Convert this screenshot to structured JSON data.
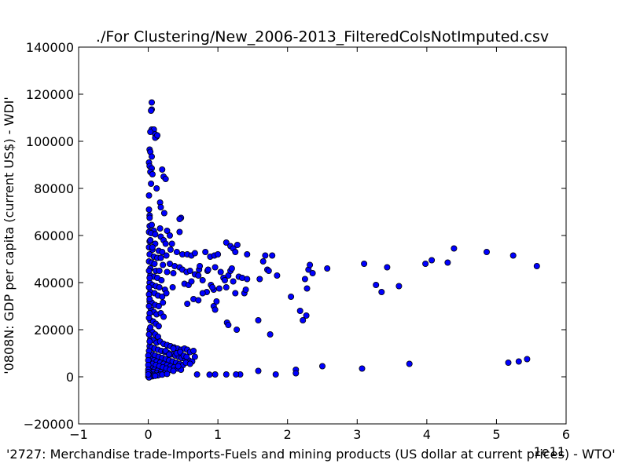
{
  "chart_data": {
    "type": "scatter",
    "title": "./For Clustering/New_2006-2013_FilteredColsNotImputed.csv",
    "xlabel": "'2727: Merchandise trade-Imports-Fuels and mining products (US dollar at current prices) - WTO'",
    "ylabel": "'0808N: GDP per capita  (current US$) - WDI'",
    "x_offset_text": "1e11",
    "xlim": [
      -1,
      6
    ],
    "ylim": [
      -20000,
      140000
    ],
    "x_ticks": [
      -1,
      0,
      1,
      2,
      3,
      4,
      5,
      6
    ],
    "x_tick_labels": [
      "−1",
      "0",
      "1",
      "2",
      "3",
      "4",
      "5",
      "6"
    ],
    "y_ticks": [
      -20000,
      0,
      20000,
      40000,
      60000,
      80000,
      100000,
      120000,
      140000
    ],
    "y_tick_labels": [
      "−20000",
      "0",
      "20000",
      "40000",
      "60000",
      "80000",
      "100000",
      "120000",
      "140000"
    ],
    "grid": false,
    "legend": "none",
    "marker_color": "#0000ff",
    "points": [
      [
        0.05,
        116500
      ],
      [
        0.05,
        113500
      ],
      [
        0.04,
        113000
      ],
      [
        0.05,
        105000
      ],
      [
        0.08,
        105000
      ],
      [
        0.03,
        104000
      ],
      [
        0.1,
        103000
      ],
      [
        0.12,
        102000
      ],
      [
        0.1,
        101500
      ],
      [
        0.13,
        102500
      ],
      [
        0.02,
        96500
      ],
      [
        0.03,
        95500
      ],
      [
        0.05,
        93500
      ],
      [
        0.01,
        91000
      ],
      [
        0.02,
        89500
      ],
      [
        0.05,
        88500
      ],
      [
        0.2,
        88000
      ],
      [
        0.03,
        87000
      ],
      [
        0.06,
        86000
      ],
      [
        0.22,
        85000
      ],
      [
        0.25,
        84000
      ],
      [
        0.04,
        82000
      ],
      [
        0.12,
        80000
      ],
      [
        0.01,
        77000
      ],
      [
        0.17,
        74000
      ],
      [
        0.18,
        72000
      ],
      [
        0.01,
        71000
      ],
      [
        0.23,
        69500
      ],
      [
        0.02,
        68500
      ],
      [
        0.02,
        67500
      ],
      [
        0.47,
        67500
      ],
      [
        0.45,
        67000
      ],
      [
        0.02,
        64000
      ],
      [
        0.05,
        64500
      ],
      [
        0.08,
        62000
      ],
      [
        0.17,
        63000
      ],
      [
        0.27,
        62000
      ],
      [
        0.45,
        61500
      ],
      [
        0.01,
        61500
      ],
      [
        0.04,
        61000
      ],
      [
        0.1,
        60500
      ],
      [
        0.18,
        59500
      ],
      [
        0.31,
        60000
      ],
      [
        0.22,
        58000
      ],
      [
        0.02,
        57500
      ],
      [
        0.1,
        56500
      ],
      [
        0.25,
        56500
      ],
      [
        0.34,
        56500
      ],
      [
        0.01,
        55000
      ],
      [
        0.06,
        54000
      ],
      [
        0.15,
        53500
      ],
      [
        0.2,
        53000
      ],
      [
        0.32,
        54000
      ],
      [
        0.41,
        53000
      ],
      [
        0.49,
        52000
      ],
      [
        0.56,
        52000
      ],
      [
        0.62,
        51500
      ],
      [
        0.67,
        52500
      ],
      [
        0.02,
        52000
      ],
      [
        0.08,
        51000
      ],
      [
        0.13,
        50500
      ],
      [
        0.18,
        50500
      ],
      [
        0.26,
        51500
      ],
      [
        0.01,
        49000
      ],
      [
        0.05,
        48500
      ],
      [
        0.09,
        48000
      ],
      [
        0.21,
        47500
      ],
      [
        0.31,
        48000
      ],
      [
        0.38,
        47000
      ],
      [
        0.45,
        46500
      ],
      [
        0.49,
        45500
      ],
      [
        0.03,
        46000
      ],
      [
        0.11,
        45000
      ],
      [
        0.16,
        45000
      ],
      [
        0.27,
        44500
      ],
      [
        0.36,
        44000
      ],
      [
        0.55,
        44500
      ],
      [
        0.6,
        45000
      ],
      [
        0.67,
        43500
      ],
      [
        0.03,
        43000
      ],
      [
        0.08,
        42500
      ],
      [
        0.13,
        42000
      ],
      [
        0.19,
        41000
      ],
      [
        0.02,
        40000
      ],
      [
        0.06,
        39000
      ],
      [
        0.11,
        38500
      ],
      [
        0.16,
        38000
      ],
      [
        0.24,
        37000
      ],
      [
        0.35,
        38000
      ],
      [
        0.52,
        39500
      ],
      [
        0.58,
        39000
      ],
      [
        0.62,
        40500
      ],
      [
        0.03,
        36000
      ],
      [
        0.09,
        35500
      ],
      [
        0.14,
        34500
      ],
      [
        0.2,
        34000
      ],
      [
        0.26,
        35500
      ],
      [
        0.02,
        32000
      ],
      [
        0.05,
        31500
      ],
      [
        0.1,
        30500
      ],
      [
        0.15,
        30000
      ],
      [
        0.21,
        31500
      ],
      [
        0.56,
        31000
      ],
      [
        0.65,
        33000
      ],
      [
        0.72,
        32500
      ],
      [
        0.04,
        28500
      ],
      [
        0.08,
        27500
      ],
      [
        0.12,
        26500
      ],
      [
        0.18,
        27000
      ],
      [
        0.22,
        25500
      ],
      [
        0.03,
        24000
      ],
      [
        0.07,
        23500
      ],
      [
        0.11,
        22500
      ],
      [
        0.15,
        21500
      ],
      [
        0.02,
        20000
      ],
      [
        0.06,
        19000
      ],
      [
        0.1,
        18000
      ],
      [
        0.14,
        17000
      ],
      [
        0.03,
        16000
      ],
      [
        0.07,
        15500
      ],
      [
        0.12,
        14500
      ],
      [
        0.17,
        15000
      ],
      [
        0.22,
        14000
      ],
      [
        0.27,
        13500
      ],
      [
        0.32,
        13000
      ],
      [
        0.37,
        12500
      ],
      [
        0.42,
        12000
      ],
      [
        0.47,
        11500
      ],
      [
        0.52,
        12000
      ],
      [
        0.56,
        11500
      ],
      [
        0.6,
        10500
      ],
      [
        0.65,
        11000
      ],
      [
        0.02,
        13000
      ],
      [
        0.05,
        12500
      ],
      [
        0.09,
        12000
      ],
      [
        0.14,
        11500
      ],
      [
        0.19,
        11000
      ],
      [
        0.24,
        10500
      ],
      [
        0.29,
        10000
      ],
      [
        0.34,
        9500
      ],
      [
        0.39,
        9000
      ],
      [
        0.44,
        8500
      ],
      [
        0.48,
        8000
      ],
      [
        0.53,
        7500
      ],
      [
        0.58,
        7000
      ],
      [
        0.63,
        6500
      ],
      [
        0.67,
        8500
      ],
      [
        0.02,
        10000
      ],
      [
        0.06,
        9500
      ],
      [
        0.1,
        9000
      ],
      [
        0.15,
        8500
      ],
      [
        0.2,
        8000
      ],
      [
        0.25,
        7500
      ],
      [
        0.3,
        7000
      ],
      [
        0.35,
        6500
      ],
      [
        0.4,
        6000
      ],
      [
        0.45,
        5500
      ],
      [
        0.5,
        5000
      ],
      [
        0.54,
        6000
      ],
      [
        0.6,
        5500
      ],
      [
        0.01,
        8000
      ],
      [
        0.04,
        7500
      ],
      [
        0.08,
        7000
      ],
      [
        0.12,
        6500
      ],
      [
        0.17,
        6000
      ],
      [
        0.22,
        5500
      ],
      [
        0.27,
        5000
      ],
      [
        0.32,
        4500
      ],
      [
        0.37,
        4000
      ],
      [
        0.42,
        3500
      ],
      [
        0.47,
        3000
      ],
      [
        0.02,
        6000
      ],
      [
        0.06,
        5500
      ],
      [
        0.11,
        5000
      ],
      [
        0.16,
        4500
      ],
      [
        0.21,
        4000
      ],
      [
        0.26,
        3500
      ],
      [
        0.31,
        3000
      ],
      [
        0.36,
        2500
      ],
      [
        0.01,
        4000
      ],
      [
        0.05,
        3500
      ],
      [
        0.09,
        3000
      ],
      [
        0.13,
        2500
      ],
      [
        0.18,
        2000
      ],
      [
        0.23,
        1500
      ],
      [
        0.02,
        2500
      ],
      [
        0.07,
        2000
      ],
      [
        0.12,
        1500
      ],
      [
        0.17,
        1000
      ],
      [
        0.01,
        1500
      ],
      [
        0.04,
        1000
      ],
      [
        0.08,
        800
      ],
      [
        0.14,
        600
      ],
      [
        0.2,
        900
      ],
      [
        0.27,
        1200
      ],
      [
        0.01,
        500
      ],
      [
        0.03,
        300
      ],
      [
        0.06,
        200
      ],
      [
        0.1,
        400
      ],
      [
        0.0,
        100
      ],
      [
        0.02,
        0
      ],
      [
        0.01,
        -300
      ],
      [
        0.25,
        11000
      ],
      [
        0.3,
        9500
      ],
      [
        0.36,
        12000
      ],
      [
        0.41,
        10000
      ],
      [
        0.46,
        10500
      ],
      [
        0.51,
        9000
      ],
      [
        0.55,
        8500
      ],
      [
        0.43,
        4500
      ],
      [
        0.03,
        58000
      ],
      [
        0.06,
        55000
      ],
      [
        0.01,
        45000
      ],
      [
        0.02,
        42000
      ],
      [
        0.01,
        38000
      ],
      [
        0.01,
        35000
      ],
      [
        0.02,
        33000
      ],
      [
        0.01,
        30000
      ],
      [
        0.02,
        27000
      ],
      [
        0.01,
        25000
      ],
      [
        0.03,
        21000
      ],
      [
        0.01,
        18000
      ],
      [
        0.02,
        15000
      ],
      [
        0.01,
        11000
      ],
      [
        0.0,
        9000
      ],
      [
        0.0,
        7000
      ],
      [
        0.0,
        5000
      ],
      [
        0.0,
        3000
      ],
      [
        0.0,
        2000
      ],
      [
        0.0,
        1000
      ],
      [
        0.72,
        43000
      ],
      [
        0.73,
        45500
      ],
      [
        0.74,
        47000
      ],
      [
        0.85,
        45000
      ],
      [
        0.9,
        39000
      ],
      [
        0.94,
        37000
      ],
      [
        1.02,
        37500
      ],
      [
        1.08,
        42000
      ],
      [
        1.1,
        41000
      ],
      [
        1.12,
        38000
      ],
      [
        1.15,
        43000
      ],
      [
        1.18,
        45000
      ],
      [
        1.2,
        46000
      ],
      [
        1.22,
        40500
      ],
      [
        1.25,
        35500
      ],
      [
        1.3,
        42500
      ],
      [
        1.35,
        42000
      ],
      [
        1.38,
        35500
      ],
      [
        1.4,
        37000
      ],
      [
        1.42,
        41500
      ],
      [
        0.82,
        53000
      ],
      [
        0.89,
        51000
      ],
      [
        0.95,
        51500
      ],
      [
        1.0,
        52000
      ],
      [
        1.12,
        57000
      ],
      [
        1.18,
        55500
      ],
      [
        1.22,
        54500
      ],
      [
        1.25,
        53000
      ],
      [
        1.28,
        56000
      ],
      [
        1.42,
        52000
      ],
      [
        0.86,
        45500
      ],
      [
        0.96,
        46500
      ],
      [
        1.04,
        44500
      ],
      [
        0.92,
        38000
      ],
      [
        0.84,
        36000
      ],
      [
        0.78,
        35500
      ],
      [
        0.94,
        30000
      ],
      [
        0.98,
        32000
      ],
      [
        0.96,
        28500
      ],
      [
        0.78,
        41000
      ],
      [
        1.13,
        23000
      ],
      [
        1.15,
        22000
      ],
      [
        1.27,
        20000
      ],
      [
        1.58,
        24000
      ],
      [
        1.6,
        41500
      ],
      [
        1.65,
        49000
      ],
      [
        1.68,
        51500
      ],
      [
        1.71,
        45500
      ],
      [
        1.75,
        18000
      ],
      [
        1.78,
        51500
      ],
      [
        1.73,
        45000
      ],
      [
        1.85,
        43000
      ],
      [
        2.05,
        34000
      ],
      [
        2.18,
        28000
      ],
      [
        2.22,
        24000
      ],
      [
        2.25,
        41500
      ],
      [
        2.27,
        26000
      ],
      [
        2.28,
        37500
      ],
      [
        2.3,
        45500
      ],
      [
        2.32,
        47500
      ],
      [
        2.36,
        44000
      ],
      [
        2.57,
        46000
      ],
      [
        3.1,
        48000
      ],
      [
        3.27,
        39000
      ],
      [
        3.35,
        36000
      ],
      [
        3.43,
        46500
      ],
      [
        3.6,
        38500
      ],
      [
        3.98,
        48000
      ],
      [
        4.07,
        49500
      ],
      [
        4.3,
        48500
      ],
      [
        4.39,
        54500
      ],
      [
        4.86,
        53000
      ],
      [
        5.24,
        51500
      ],
      [
        5.58,
        47000
      ],
      [
        5.17,
        6000
      ],
      [
        5.32,
        6500
      ],
      [
        5.44,
        7500
      ],
      [
        3.75,
        5500
      ],
      [
        3.07,
        3500
      ],
      [
        2.5,
        4500
      ],
      [
        2.12,
        3000
      ],
      [
        2.12,
        1500
      ],
      [
        1.83,
        1000
      ],
      [
        1.58,
        2500
      ],
      [
        1.32,
        1000
      ],
      [
        1.26,
        1000
      ],
      [
        0.96,
        1000
      ],
      [
        0.88,
        900
      ],
      [
        0.7,
        1000
      ],
      [
        1.12,
        1000
      ]
    ]
  }
}
